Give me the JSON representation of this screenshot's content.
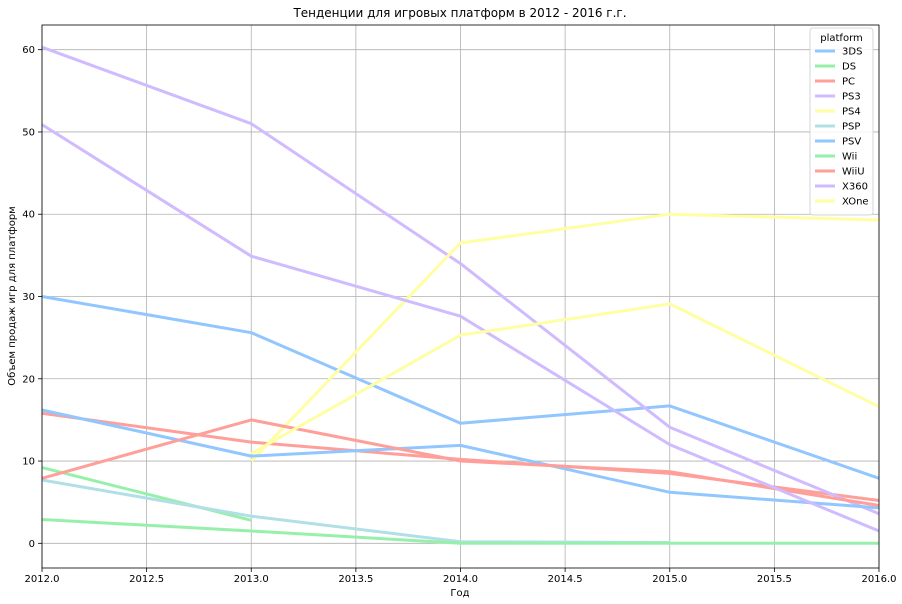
{
  "chart_data": {
    "type": "line",
    "title": "Тенденции для игровых платформ в 2012 - 2016 г.г.",
    "xlabel": "Год",
    "ylabel": "Объем продаж игр для платформ",
    "xlim": [
      2012.0,
      2016.0
    ],
    "ylim": [
      -3.0,
      63.0
    ],
    "x_ticks": [
      "2012.0",
      "2012.5",
      "2013.0",
      "2013.5",
      "2014.0",
      "2014.5",
      "2015.0",
      "2015.5",
      "2016.0"
    ],
    "y_ticks": [
      "0",
      "10",
      "20",
      "30",
      "40",
      "50",
      "60"
    ],
    "grid": true,
    "legend_title": "platform",
    "legend_position": "top-right",
    "x": [
      2012,
      2013,
      2014,
      2015,
      2016
    ],
    "series": [
      {
        "name": "3DS",
        "color": "#92c6ff",
        "values": [
          30.0,
          25.6,
          14.6,
          16.7,
          7.9
        ]
      },
      {
        "name": "DS",
        "color": "#97f0aa",
        "values": [
          9.2,
          2.8,
          null,
          null,
          null
        ]
      },
      {
        "name": "PC",
        "color": "#ff9f9a",
        "values": [
          15.8,
          12.3,
          10.2,
          8.5,
          5.2
        ]
      },
      {
        "name": "PS3",
        "color": "#d0bbff",
        "values": [
          60.3,
          51.0,
          34.0,
          14.1,
          3.6
        ]
      },
      {
        "name": "PS4",
        "color": "#fffea3",
        "values": [
          null,
          10.0,
          36.5,
          40.0,
          39.3
        ]
      },
      {
        "name": "PSP",
        "color": "#b0e0e6",
        "values": [
          7.7,
          3.3,
          0.2,
          0.1,
          null
        ]
      },
      {
        "name": "PSV",
        "color": "#92c6ff",
        "values": [
          16.2,
          10.6,
          11.9,
          6.2,
          4.3
        ]
      },
      {
        "name": "Wii",
        "color": "#97f0aa",
        "values": [
          2.9,
          1.5,
          0.0,
          0.0,
          0.0
        ]
      },
      {
        "name": "WiiU",
        "color": "#ff9f9a",
        "values": [
          7.9,
          15.0,
          10.0,
          8.7,
          4.6
        ]
      },
      {
        "name": "X360",
        "color": "#d0bbff",
        "values": [
          50.9,
          34.9,
          27.6,
          12.0,
          1.5
        ]
      },
      {
        "name": "XOne",
        "color": "#fffea3",
        "values": [
          null,
          10.9,
          25.3,
          29.1,
          16.6
        ]
      }
    ]
  }
}
